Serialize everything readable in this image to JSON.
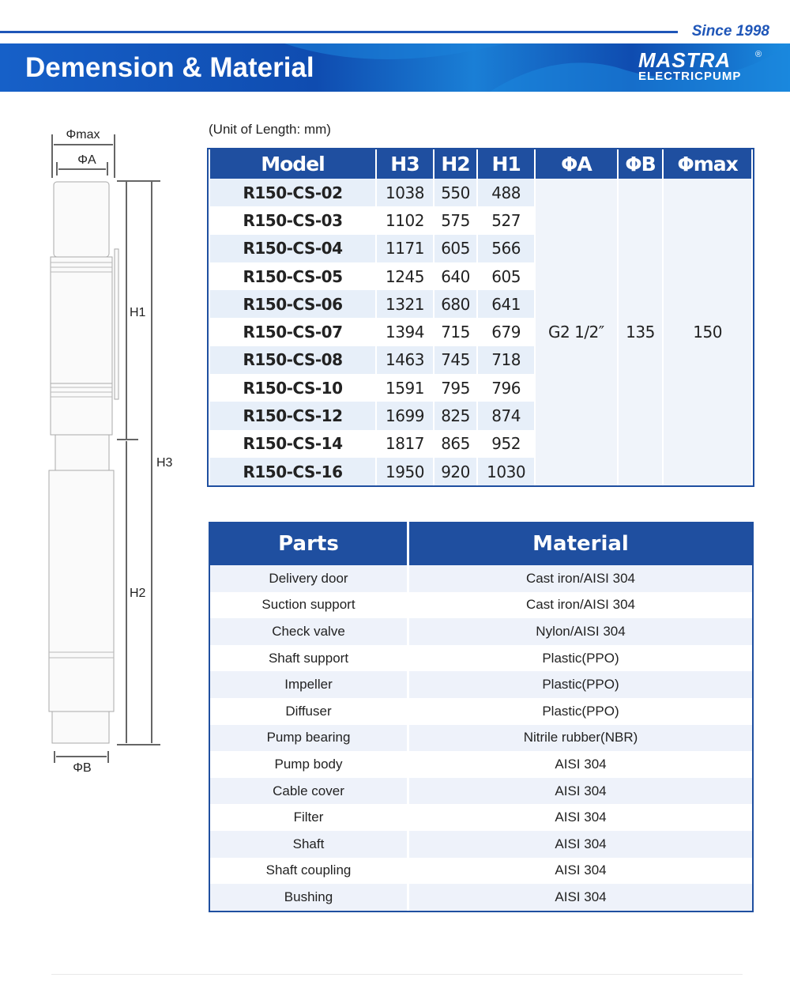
{
  "header": {
    "since": "Since 1998",
    "title": "Demension & Material",
    "logo_mark": "MASTRA",
    "logo_sub": "ELECTRICPUMP",
    "logo_reg": "®"
  },
  "colors": {
    "brand": "#1f4fa0",
    "accent": "#1f56b8",
    "row_alt": "#e7eff9"
  },
  "diagram": {
    "phi_max": "Φmax",
    "phi_a": "ΦA",
    "phi_b": "ΦB",
    "h1": "H1",
    "h2": "H2",
    "h3": "H3"
  },
  "dimensions": {
    "unit_note": "(Unit of Length: mm)",
    "headers": [
      "Model",
      "H3",
      "H2",
      "H1",
      "ΦA",
      "ΦB",
      "Φmax"
    ],
    "rows": [
      [
        "R150-CS-02",
        "1038",
        "550",
        "488"
      ],
      [
        "R150-CS-03",
        "1102",
        "575",
        "527"
      ],
      [
        "R150-CS-04",
        "1171",
        "605",
        "566"
      ],
      [
        "R150-CS-05",
        "1245",
        "640",
        "605"
      ],
      [
        "R150-CS-06",
        "1321",
        "680",
        "641"
      ],
      [
        "R150-CS-07",
        "1394",
        "715",
        "679"
      ],
      [
        "R150-CS-08",
        "1463",
        "745",
        "718"
      ],
      [
        "R150-CS-10",
        "1591",
        "795",
        "796"
      ],
      [
        "R150-CS-12",
        "1699",
        "825",
        "874"
      ],
      [
        "R150-CS-14",
        "1817",
        "865",
        "952"
      ],
      [
        "R150-CS-16",
        "1950",
        "920",
        "1030"
      ]
    ],
    "phi_a": "G2 1/2″",
    "phi_b": "135",
    "phi_max": "150"
  },
  "materials": {
    "headers": [
      "Parts",
      "Material"
    ],
    "rows": [
      [
        "Delivery door",
        "Cast iron/AISI 304"
      ],
      [
        "Suction support",
        "Cast iron/AISI 304"
      ],
      [
        "Check valve",
        "Nylon/AISI 304"
      ],
      [
        "Shaft support",
        "Plastic(PPO)"
      ],
      [
        "Impeller",
        "Plastic(PPO)"
      ],
      [
        "Diffuser",
        "Plastic(PPO)"
      ],
      [
        "Pump bearing",
        "Nitrile rubber(NBR)"
      ],
      [
        "Pump body",
        "AISI 304"
      ],
      [
        "Cable cover",
        "AISI 304"
      ],
      [
        "Filter",
        "AISI 304"
      ],
      [
        "Shaft",
        "AISI 304"
      ],
      [
        "Shaft coupling",
        "AISI 304"
      ],
      [
        "Bushing",
        "AISI 304"
      ]
    ]
  }
}
